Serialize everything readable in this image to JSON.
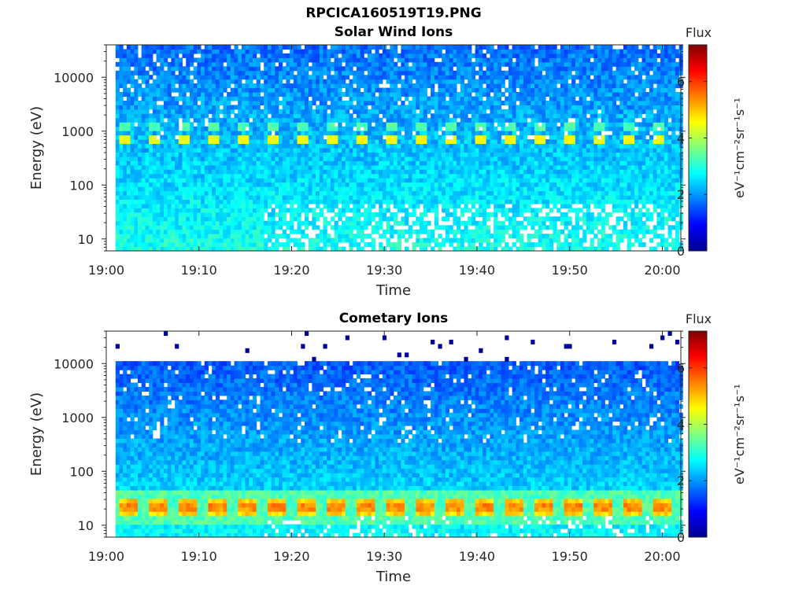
{
  "figure_title": "RPCICA160519T19.PNG",
  "colors": {
    "colormap": "jet",
    "gap": "#ffffff",
    "axis": "#262626"
  },
  "chart_data": [
    {
      "type": "heatmap",
      "title": "Solar Wind Ions",
      "xlabel": "Time",
      "ylabel": "Energy (eV)",
      "x_ticks": [
        "19:00",
        "19:10",
        "19:20",
        "19:30",
        "19:40",
        "19:50",
        "20:00"
      ],
      "x_range": [
        "19:00",
        "20:02"
      ],
      "y_scale": "log",
      "y_ticks": [
        "10",
        "100",
        "1000",
        "10000"
      ],
      "y_range": [
        6,
        40000
      ],
      "colorbar": {
        "title": "Flux",
        "label": "eV⁻¹cm⁻²sr⁻¹s⁻¹",
        "ticks": [
          "0",
          "2",
          "4",
          "6"
        ],
        "range": [
          0,
          7.3
        ]
      },
      "data_start": "19:01",
      "features": {
        "peak_energies_eV": [
          650,
          1300
        ],
        "peak_value": 4.3,
        "scan_period_min": 3.2,
        "high_energy_gap_eV": 0,
        "low_energy_gaps_after": "19:17"
      }
    },
    {
      "type": "heatmap",
      "title": "Cometary Ions",
      "xlabel": "Time",
      "ylabel": "Energy (eV)",
      "x_ticks": [
        "19:00",
        "19:10",
        "19:20",
        "19:30",
        "19:40",
        "19:50",
        "20:00"
      ],
      "x_range": [
        "19:00",
        "20:02"
      ],
      "y_scale": "log",
      "y_ticks": [
        "10",
        "100",
        "1000",
        "10000"
      ],
      "y_range": [
        6,
        40000
      ],
      "colorbar": {
        "title": "Flux",
        "label": "eV⁻¹cm⁻²sr⁻¹s⁻¹",
        "ticks": [
          "0",
          "2",
          "4",
          "6"
        ],
        "range": [
          0,
          7.3
        ]
      },
      "data_start": "19:01",
      "features": {
        "peak_energies_eV": [
          22
        ],
        "peak_value": 5.3,
        "scan_period_min": 3.2,
        "high_energy_cutoff_eV": 11000,
        "low_energy_gaps_after": "19:17"
      }
    }
  ]
}
